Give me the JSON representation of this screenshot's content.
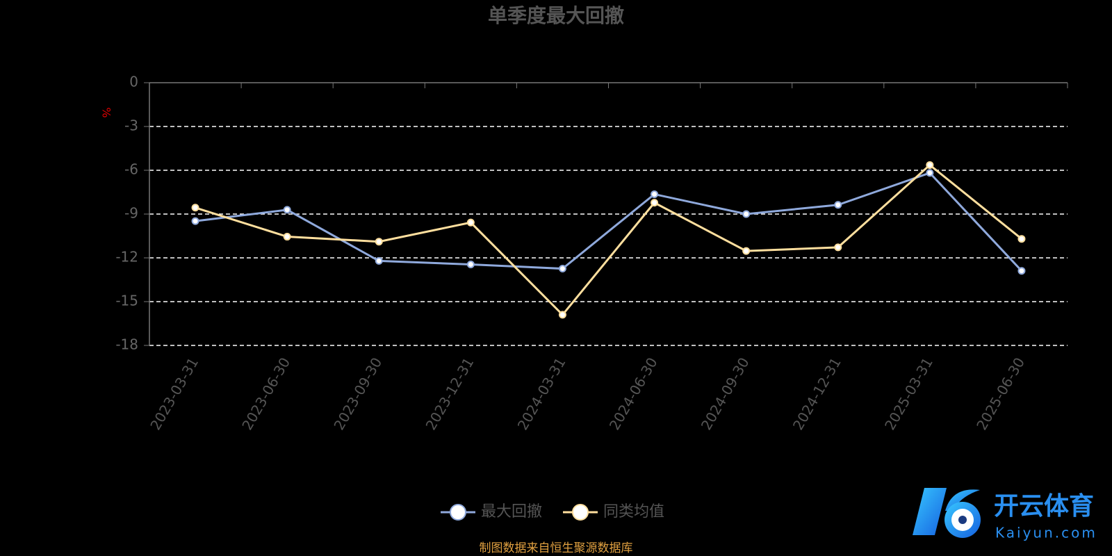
{
  "chart_data": {
    "type": "line",
    "title": "单季度最大回撤",
    "y_label": "%",
    "categories": [
      "2023-03-31",
      "2023-06-30",
      "2023-09-30",
      "2023-12-31",
      "2024-03-31",
      "2024-06-30",
      "2024-09-30",
      "2024-12-31",
      "2025-03-31",
      "2025-06-30"
    ],
    "series": [
      {
        "name": "最大回撤",
        "color": "#8fa9dc",
        "values": [
          -9.48,
          -8.71,
          -12.21,
          -12.45,
          -12.74,
          -7.64,
          -9.0,
          -8.37,
          -6.18,
          -12.89
        ]
      },
      {
        "name": "同类均值",
        "color": "#ffdf9e",
        "values": [
          -8.56,
          -10.55,
          -10.89,
          -9.58,
          -15.9,
          -8.22,
          -11.53,
          -11.28,
          -5.64,
          -10.7
        ]
      }
    ],
    "ylim": [
      -18,
      0
    ],
    "yticks": [
      0,
      -3,
      -6,
      -9,
      -12,
      -15,
      -18
    ],
    "grid": true,
    "source": "制图数据来自恒生聚源数据库"
  },
  "watermark": {
    "brand": "开云体育",
    "site": "Kaiyun.com"
  }
}
